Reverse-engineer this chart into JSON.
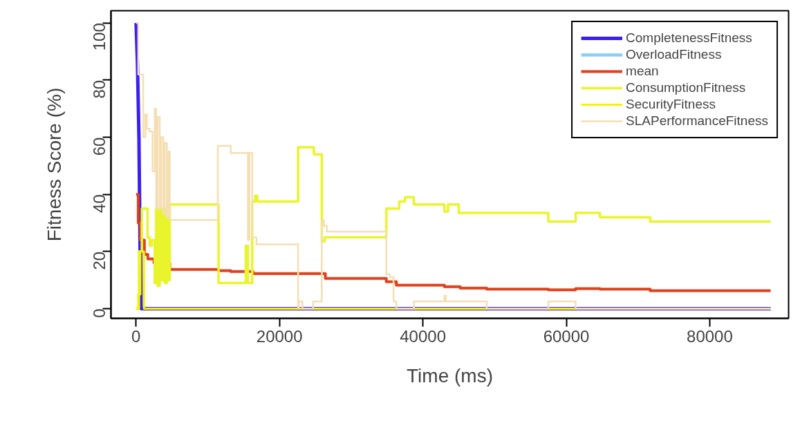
{
  "chart_data": {
    "type": "step",
    "xlabel": "Time (ms)",
    "ylabel": "Fitness Score (%)",
    "xlim": [
      -3500,
      91000
    ],
    "ylim": [
      -3.4,
      104.3
    ],
    "xticks": [
      0,
      20000,
      40000,
      60000,
      80000
    ],
    "yticks": [
      0,
      20,
      40,
      60,
      80,
      100
    ],
    "grid": false,
    "legend": "top right",
    "series": [
      {
        "name": "CompletenessFitness",
        "type": "line",
        "color": "#3a1ff5",
        "x": [
          0,
          190,
          400,
          560,
          650,
          700,
          88500
        ],
        "values": [
          100,
          86,
          60,
          20,
          20,
          0,
          0
        ]
      },
      {
        "name": "OverloadFitness",
        "color": "#87cefa",
        "values": [
          null,
          null
        ]
      },
      {
        "name": "mean",
        "color": "#e0401c",
        "x": [
          0,
          300,
          600,
          1160,
          1640,
          2500,
          4700,
          11500,
          13200,
          16300,
          26400,
          34900,
          36300,
          43000,
          45200,
          48900,
          57500,
          61300,
          64700,
          71700,
          88500
        ],
        "values": [
          40,
          30,
          24,
          19,
          17.4,
          16,
          13.7,
          13.3,
          13,
          12.3,
          10.6,
          9.4,
          8.2,
          7.7,
          7.2,
          6.8,
          6.6,
          7,
          6.8,
          6.3,
          6.3
        ]
      },
      {
        "name": "ConsumptionFitness",
        "color": "#e9f52c",
        "x": [
          0,
          400,
          800,
          1600,
          1900,
          2200,
          2600,
          2800,
          3000,
          3300,
          3500,
          3800,
          4000,
          4300,
          4500,
          4700,
          11500,
          15300,
          15600,
          16200,
          16600,
          16900,
          22600,
          24800,
          25900,
          26300,
          34900,
          36700,
          37500,
          38750,
          43000,
          43500,
          45000,
          57500,
          61300,
          64700,
          71700,
          88500
        ],
        "values": [
          0,
          20,
          35,
          25,
          22,
          24,
          9,
          35,
          8,
          35,
          10,
          35,
          9,
          36,
          10,
          36.5,
          9,
          22,
          9,
          37.5,
          39.5,
          37.5,
          56.5,
          54,
          23.5,
          25,
          35,
          37.5,
          39,
          36.5,
          34,
          36.5,
          33.5,
          30.5,
          33.5,
          32,
          30.5,
          30.5
        ]
      },
      {
        "name": "SecurityFitness",
        "color": "#f5f500",
        "x": [
          0,
          300,
          600,
          1100,
          88500
        ],
        "values": [
          0,
          5,
          20,
          0,
          0
        ]
      },
      {
        "name": "SLAPerformanceFitness",
        "color": "#f5deb3",
        "x": [
          0,
          300,
          1000,
          1300,
          1500,
          1900,
          2300,
          2600,
          2800,
          3000,
          3300,
          3500,
          3800,
          4000,
          4300,
          4500,
          4700,
          11400,
          13200,
          15600,
          15800,
          16200,
          16800,
          22600,
          22700,
          23200,
          24700,
          25900,
          26200,
          26600,
          34900,
          35400,
          35900,
          36300,
          38750,
          43000,
          43200,
          48900,
          57500,
          61300,
          88500
        ],
        "values": [
          100,
          82,
          60,
          68,
          63,
          62,
          48,
          70,
          35,
          67,
          35,
          60,
          33,
          58,
          32,
          55,
          31,
          57,
          54.5,
          24,
          54.5,
          25,
          22.5,
          0,
          2.5,
          0,
          2.5,
          31,
          29,
          27,
          12,
          11,
          2.5,
          0,
          2.5,
          4.5,
          2.5,
          0,
          2.5,
          0,
          0
        ]
      }
    ]
  }
}
